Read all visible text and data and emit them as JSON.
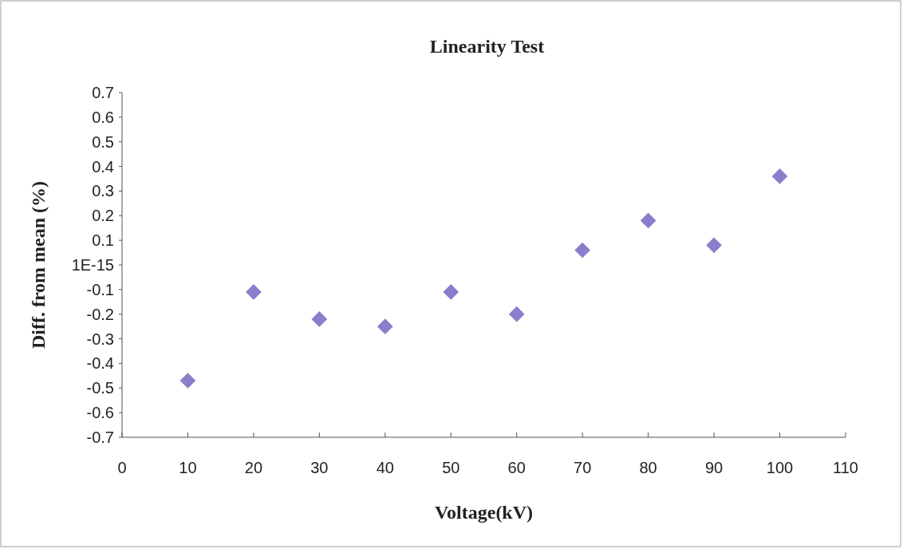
{
  "chart_data": {
    "type": "scatter",
    "title": "Linearity Test",
    "xlabel": "Voltage(kV)",
    "ylabel": "Diff. from mean (%)",
    "x": [
      10,
      20,
      30,
      40,
      50,
      60,
      70,
      80,
      90,
      100
    ],
    "series": [
      {
        "color": "#8a7ecb",
        "values": [
          -0.47,
          -0.11,
          -0.22,
          -0.25,
          -0.11,
          -0.2,
          0.06,
          0.18,
          0.08,
          0.36
        ]
      }
    ],
    "xlim": [
      0,
      110
    ],
    "xticks": [
      0,
      10,
      20,
      30,
      40,
      50,
      60,
      70,
      80,
      90,
      100,
      110
    ],
    "ylim": [
      -0.7,
      0.7
    ],
    "yticks": [
      -0.7,
      -0.6,
      -0.5,
      -0.4,
      -0.3,
      -0.2,
      -0.1,
      {
        "value": 1e-15,
        "label": "1E-15"
      },
      0.1,
      0.2,
      0.3,
      0.4,
      0.5,
      0.6,
      0.7
    ],
    "marker": "diamond"
  }
}
